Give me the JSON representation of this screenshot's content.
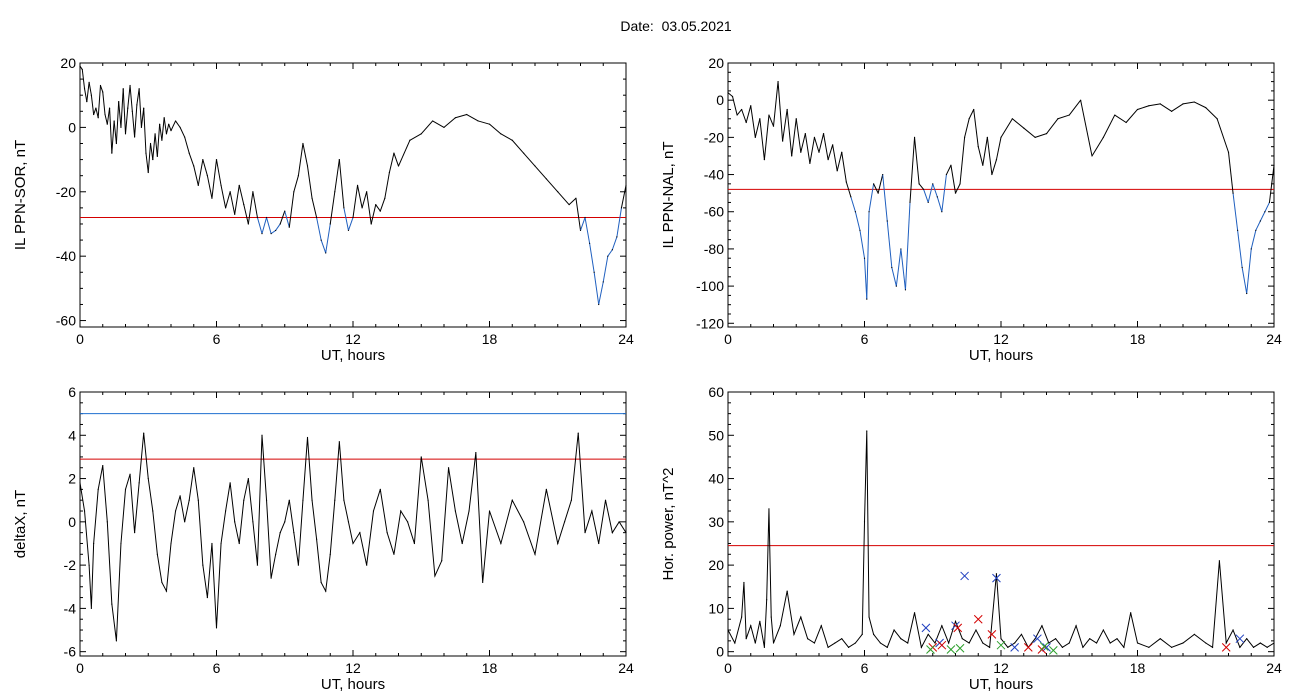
{
  "date_title": "Date:  03.05.2021",
  "colors": {
    "trace": "#000000",
    "below_threshold": "#1f5fbf",
    "threshold_red": "#d40000",
    "threshold_blue": "#1f6fcf",
    "marker_blue": "#1f3fbf",
    "marker_red": "#d40000",
    "marker_green": "#2ca02c"
  },
  "chart_data": [
    {
      "id": "il-ppn-sor",
      "type": "line",
      "xlabel": "UT, hours",
      "ylabel": "IL PPN-SOR, nT",
      "xlim": [
        0,
        24
      ],
      "ylim": [
        -62,
        20
      ],
      "xticks": [
        0,
        6,
        12,
        18,
        24
      ],
      "yticks": [
        20,
        0,
        -20,
        -40,
        -60
      ],
      "threshold": {
        "value": -28,
        "color": "red"
      },
      "below_threshold_color": "blue",
      "series": [
        {
          "x": [
            0,
            0.1,
            0.2,
            0.3,
            0.4,
            0.5,
            0.6,
            0.7,
            0.8,
            0.9,
            1.0,
            1.1,
            1.2,
            1.3,
            1.4,
            1.5,
            1.6,
            1.7,
            1.8,
            1.9,
            2.0,
            2.1,
            2.2,
            2.3,
            2.4,
            2.5,
            2.6,
            2.7,
            2.8,
            2.9,
            3.0,
            3.1,
            3.2,
            3.3,
            3.4,
            3.5,
            3.6,
            3.7,
            3.8,
            3.9,
            4.0,
            4.2,
            4.4,
            4.6,
            4.8,
            5.0,
            5.2,
            5.4,
            5.6,
            5.8,
            6.0,
            6.2,
            6.4,
            6.6,
            6.8,
            7.0,
            7.2,
            7.4,
            7.6,
            7.8,
            8.0,
            8.2,
            8.4,
            8.6,
            8.8,
            9.0,
            9.2,
            9.4,
            9.6,
            9.8,
            10.0,
            10.2,
            10.4,
            10.6,
            10.8,
            11.0,
            11.2,
            11.4,
            11.6,
            11.8,
            12.0,
            12.2,
            12.4,
            12.6,
            12.8,
            13.0,
            13.2,
            13.4,
            13.6,
            13.8,
            14.0,
            14.5,
            15.0,
            15.5,
            16.0,
            16.5,
            17.0,
            17.5,
            18.0,
            18.5,
            19.0,
            19.5,
            20.0,
            20.5,
            21.0,
            21.5,
            21.8,
            22.0,
            22.2,
            22.4,
            22.6,
            22.8,
            23.0,
            23.2,
            23.4,
            23.6,
            23.8,
            24.0
          ],
          "y": [
            19,
            18,
            12,
            8,
            14,
            10,
            4,
            6,
            3,
            13,
            11,
            4,
            1,
            6,
            -8,
            2,
            -5,
            8,
            0,
            12,
            -2,
            6,
            13,
            5,
            -3,
            7,
            12,
            0,
            6,
            -8,
            -14,
            -5,
            -10,
            -2,
            -9,
            1,
            -4,
            3,
            -2,
            1,
            -1,
            2,
            0,
            -3,
            -8,
            -12,
            -18,
            -10,
            -15,
            -22,
            -10,
            -18,
            -25,
            -20,
            -27,
            -18,
            -24,
            -30,
            -20,
            -28,
            -33,
            -28,
            -33,
            -32,
            -30,
            -26,
            -31,
            -20,
            -15,
            -5,
            -12,
            -22,
            -28,
            -35,
            -39,
            -30,
            -20,
            -10,
            -25,
            -32,
            -28,
            -18,
            -25,
            -20,
            -30,
            -24,
            -26,
            -22,
            -14,
            -8,
            -12,
            -4,
            -2,
            2,
            0,
            3,
            4,
            2,
            1,
            -2,
            -4,
            -8,
            -12,
            -16,
            -20,
            -24,
            -22,
            -32,
            -28,
            -36,
            -45,
            -55,
            -48,
            -40,
            -38,
            -34,
            -25,
            -18
          ]
        }
      ]
    },
    {
      "id": "il-ppn-nal",
      "type": "line",
      "xlabel": "UT, hours",
      "ylabel": "IL PPN-NAL, nT",
      "xlim": [
        0,
        24
      ],
      "ylim": [
        -122,
        20
      ],
      "xticks": [
        0,
        6,
        12,
        18,
        24
      ],
      "yticks": [
        20,
        0,
        -20,
        -40,
        -60,
        -80,
        -100,
        -120
      ],
      "threshold": {
        "value": -48,
        "color": "red"
      },
      "below_threshold_color": "blue",
      "series": [
        {
          "x": [
            0,
            0.2,
            0.4,
            0.6,
            0.8,
            1.0,
            1.2,
            1.4,
            1.6,
            1.8,
            2.0,
            2.2,
            2.4,
            2.6,
            2.8,
            3.0,
            3.2,
            3.4,
            3.6,
            3.8,
            4.0,
            4.2,
            4.4,
            4.6,
            4.8,
            5.0,
            5.2,
            5.4,
            5.6,
            5.8,
            6.0,
            6.1,
            6.2,
            6.4,
            6.6,
            6.8,
            7.0,
            7.2,
            7.4,
            7.6,
            7.8,
            8.0,
            8.2,
            8.4,
            8.6,
            8.8,
            9.0,
            9.2,
            9.4,
            9.6,
            9.8,
            10.0,
            10.2,
            10.4,
            10.6,
            10.8,
            11.0,
            11.2,
            11.4,
            11.6,
            11.8,
            12.0,
            12.5,
            13.0,
            13.5,
            14.0,
            14.5,
            15.0,
            15.5,
            16.0,
            16.5,
            17.0,
            17.5,
            18.0,
            18.5,
            19.0,
            19.5,
            20.0,
            20.5,
            21.0,
            21.5,
            22.0,
            22.2,
            22.4,
            22.6,
            22.8,
            23.0,
            23.2,
            23.4,
            23.6,
            23.8,
            24.0
          ],
          "y": [
            4,
            2,
            -8,
            -5,
            -12,
            -3,
            -20,
            -10,
            -32,
            -8,
            -14,
            10,
            -22,
            -5,
            -30,
            -10,
            -28,
            -18,
            -34,
            -20,
            -28,
            -18,
            -32,
            -24,
            -38,
            -28,
            -44,
            -52,
            -60,
            -70,
            -85,
            -107,
            -60,
            -45,
            -50,
            -40,
            -65,
            -90,
            -100,
            -80,
            -102,
            -55,
            -20,
            -45,
            -48,
            -55,
            -45,
            -52,
            -60,
            -40,
            -35,
            -50,
            -45,
            -20,
            -10,
            -5,
            -25,
            -35,
            -20,
            -40,
            -32,
            -20,
            -10,
            -15,
            -20,
            -18,
            -10,
            -8,
            0,
            -30,
            -20,
            -8,
            -12,
            -5,
            -3,
            -2,
            -6,
            -2,
            -1,
            -4,
            -10,
            -28,
            -50,
            -70,
            -90,
            -104,
            -80,
            -70,
            -65,
            -60,
            -55,
            -35
          ]
        }
      ]
    },
    {
      "id": "deltax",
      "type": "line",
      "xlabel": "UT, hours",
      "ylabel": "deltaX, nT",
      "xlim": [
        0,
        24
      ],
      "ylim": [
        -6.2,
        6
      ],
      "xticks": [
        0,
        6,
        12,
        18,
        24
      ],
      "yticks": [
        6,
        4,
        2,
        0,
        -2,
        -4,
        -6
      ],
      "threshold": {
        "value": 2.9,
        "color": "red"
      },
      "threshold2": {
        "value": 5.0,
        "color": "blue"
      },
      "series": [
        {
          "x": [
            0,
            0.2,
            0.4,
            0.5,
            0.6,
            0.8,
            1.0,
            1.2,
            1.4,
            1.6,
            1.8,
            2.0,
            2.2,
            2.4,
            2.6,
            2.8,
            3.0,
            3.2,
            3.4,
            3.6,
            3.8,
            4.0,
            4.2,
            4.4,
            4.6,
            4.8,
            5.0,
            5.2,
            5.4,
            5.6,
            5.8,
            6.0,
            6.2,
            6.4,
            6.6,
            6.8,
            7.0,
            7.2,
            7.4,
            7.6,
            7.8,
            8.0,
            8.2,
            8.4,
            8.6,
            8.8,
            9.0,
            9.2,
            9.4,
            9.6,
            9.8,
            10.0,
            10.2,
            10.4,
            10.6,
            10.8,
            11.0,
            11.2,
            11.4,
            11.6,
            11.8,
            12.0,
            12.3,
            12.6,
            12.9,
            13.2,
            13.5,
            13.8,
            14.1,
            14.4,
            14.7,
            15.0,
            15.3,
            15.6,
            15.9,
            16.2,
            16.5,
            16.8,
            17.1,
            17.4,
            17.7,
            18.0,
            18.5,
            19.0,
            19.5,
            20.0,
            20.5,
            21.0,
            21.3,
            21.6,
            21.9,
            22.2,
            22.5,
            22.8,
            23.1,
            23.4,
            23.7,
            24.0
          ],
          "y": [
            1.8,
            0.5,
            -2.0,
            -4.0,
            -1.0,
            1.5,
            2.6,
            0.0,
            -3.8,
            -5.5,
            -1.0,
            1.5,
            2.2,
            -0.5,
            1.8,
            4.1,
            2.0,
            0.5,
            -1.5,
            -2.8,
            -3.2,
            -1.0,
            0.5,
            1.2,
            0.0,
            1.0,
            2.5,
            1.0,
            -2.0,
            -3.5,
            -1.0,
            -4.9,
            -1.0,
            0.5,
            1.8,
            0.0,
            -1.0,
            1.0,
            2.0,
            0.0,
            -2.0,
            4.0,
            1.0,
            -2.6,
            -1.5,
            -0.5,
            0.0,
            1.0,
            -0.5,
            -2.0,
            1.0,
            3.9,
            1.0,
            -0.8,
            -2.8,
            -3.2,
            -1.5,
            1.0,
            3.7,
            1.0,
            0.0,
            -1.0,
            -0.5,
            -2.0,
            0.5,
            1.5,
            -0.5,
            -1.5,
            0.5,
            0.0,
            -1.0,
            3.0,
            1.0,
            -2.5,
            -1.8,
            2.5,
            0.5,
            -1.0,
            0.5,
            3.2,
            -2.8,
            0.5,
            -1.0,
            1.0,
            0.0,
            -1.5,
            1.5,
            -1.0,
            0.0,
            1.0,
            4.1,
            -0.5,
            0.5,
            -1.0,
            1.0,
            -0.5,
            0.0,
            -0.5
          ]
        }
      ]
    },
    {
      "id": "hor-power",
      "type": "line",
      "xlabel": "UT, hours",
      "ylabel": "Hor. power, nT^2",
      "xlim": [
        0,
        24
      ],
      "ylim": [
        -1,
        60
      ],
      "xticks": [
        0,
        6,
        12,
        18,
        24
      ],
      "yticks": [
        60,
        50,
        40,
        30,
        20,
        10,
        0
      ],
      "threshold": {
        "value": 24.5,
        "color": "red"
      },
      "series": [
        {
          "x": [
            0,
            0.3,
            0.6,
            0.7,
            0.8,
            1.0,
            1.2,
            1.4,
            1.6,
            1.7,
            1.8,
            1.9,
            2.0,
            2.3,
            2.6,
            2.9,
            3.2,
            3.5,
            3.8,
            4.1,
            4.4,
            4.7,
            5.0,
            5.3,
            5.6,
            5.9,
            6.0,
            6.1,
            6.2,
            6.4,
            6.7,
            7.0,
            7.3,
            7.6,
            7.9,
            8.2,
            8.5,
            8.8,
            9.1,
            9.4,
            9.7,
            10.0,
            10.3,
            10.6,
            10.9,
            11.2,
            11.5,
            11.8,
            12.0,
            12.3,
            12.6,
            12.9,
            13.2,
            13.5,
            13.8,
            14.1,
            14.4,
            14.7,
            15.0,
            15.3,
            15.6,
            15.9,
            16.2,
            16.5,
            16.8,
            17.1,
            17.4,
            17.7,
            18.0,
            18.5,
            19.0,
            19.5,
            20.0,
            20.5,
            21.0,
            21.3,
            21.6,
            21.9,
            22.2,
            22.5,
            22.8,
            23.1,
            23.4,
            23.7,
            24.0
          ],
          "y": [
            5,
            2,
            8,
            16,
            3,
            6,
            2,
            7,
            1,
            12,
            33,
            8,
            2,
            6,
            14,
            4,
            8,
            3,
            2,
            6,
            1,
            2,
            3,
            1,
            2,
            4,
            30,
            51,
            8,
            4,
            2,
            1,
            5,
            3,
            2,
            9,
            1,
            4,
            2,
            6,
            2,
            7,
            3,
            2,
            5,
            2,
            1,
            18,
            3,
            1,
            2,
            4,
            1,
            3,
            6,
            2,
            3,
            1,
            2,
            6,
            1,
            3,
            2,
            5,
            2,
            3,
            1,
            9,
            2,
            1,
            3,
            1,
            2,
            4,
            2,
            1,
            21,
            2,
            5,
            1,
            3,
            1,
            2,
            1,
            2
          ]
        }
      ],
      "markers": [
        {
          "color": "blue",
          "points": [
            [
              8.7,
              5.5
            ],
            [
              9.3,
              2.0
            ],
            [
              10.0,
              6.0
            ],
            [
              10.4,
              17.5
            ],
            [
              11.8,
              17.0
            ],
            [
              12.6,
              1.0
            ],
            [
              13.6,
              3.0
            ],
            [
              14.0,
              1.0
            ],
            [
              22.5,
              3.0
            ]
          ]
        },
        {
          "color": "red",
          "points": [
            [
              9.0,
              1.0
            ],
            [
              9.4,
              1.5
            ],
            [
              10.1,
              5.5
            ],
            [
              11.0,
              7.5
            ],
            [
              11.6,
              4.0
            ],
            [
              13.2,
              1.0
            ],
            [
              13.8,
              0.5
            ],
            [
              21.9,
              1.0
            ]
          ]
        },
        {
          "color": "green",
          "points": [
            [
              8.9,
              0.5
            ],
            [
              9.8,
              0.5
            ],
            [
              10.2,
              0.8
            ],
            [
              12.0,
              1.5
            ],
            [
              13.9,
              1.2
            ],
            [
              14.3,
              0.3
            ]
          ]
        }
      ]
    }
  ]
}
